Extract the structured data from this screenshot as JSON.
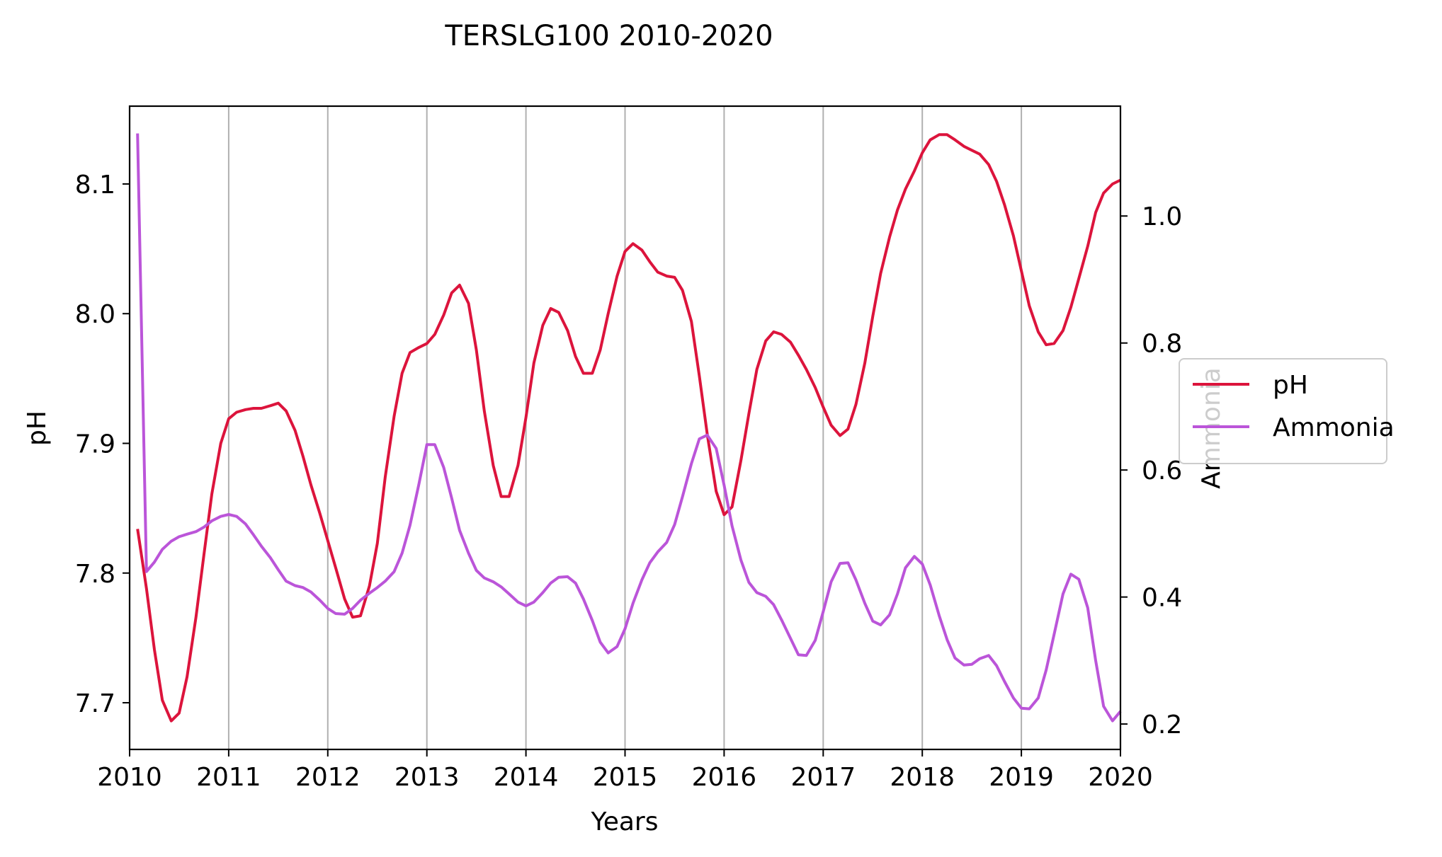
{
  "chart_data": {
    "type": "line",
    "title": "TERSLG100 2010-2020",
    "xlabel": "Years",
    "ylabel_left": "pH",
    "ylabel_right": "Ammonia",
    "xlim": [
      2010.0,
      2020.0
    ],
    "ylim_left": [
      7.664,
      8.16
    ],
    "ylim_right": [
      0.16,
      1.173
    ],
    "x_ticks": [
      {
        "value": 2010,
        "label": "2010"
      },
      {
        "value": 2011,
        "label": "2011"
      },
      {
        "value": 2012,
        "label": "2012"
      },
      {
        "value": 2013,
        "label": "2013"
      },
      {
        "value": 2014,
        "label": "2014"
      },
      {
        "value": 2015,
        "label": "2015"
      },
      {
        "value": 2016,
        "label": "2016"
      },
      {
        "value": 2017,
        "label": "2017"
      },
      {
        "value": 2018,
        "label": "2018"
      },
      {
        "value": 2019,
        "label": "2019"
      },
      {
        "value": 2020,
        "label": "2020"
      }
    ],
    "y_ticks_left": [
      {
        "value": 7.7,
        "label": "7.7"
      },
      {
        "value": 7.8,
        "label": "7.8"
      },
      {
        "value": 7.9,
        "label": "7.9"
      },
      {
        "value": 8.0,
        "label": "8.0"
      },
      {
        "value": 8.1,
        "label": "8.1"
      }
    ],
    "y_ticks_right": [
      {
        "value": 0.2,
        "label": "0.2"
      },
      {
        "value": 0.4,
        "label": "0.4"
      },
      {
        "value": 0.6,
        "label": "0.6"
      },
      {
        "value": 0.8,
        "label": "0.8"
      },
      {
        "value": 1.0,
        "label": "1.0"
      }
    ],
    "grid": "vertical",
    "legend_position": "right",
    "series": [
      {
        "name": "pH",
        "axis": "left",
        "color": "#dc143c",
        "x": [
          2010.08,
          2010.17,
          2010.25,
          2010.33,
          2010.42,
          2010.5,
          2010.58,
          2010.67,
          2010.75,
          2010.83,
          2010.92,
          2011.0,
          2011.08,
          2011.17,
          2011.25,
          2011.33,
          2011.42,
          2011.5,
          2011.58,
          2011.67,
          2011.75,
          2011.83,
          2011.92,
          2012.0,
          2012.08,
          2012.17,
          2012.25,
          2012.33,
          2012.42,
          2012.5,
          2012.58,
          2012.67,
          2012.75,
          2012.83,
          2012.92,
          2013.0,
          2013.08,
          2013.17,
          2013.25,
          2013.33,
          2013.42,
          2013.5,
          2013.58,
          2013.67,
          2013.75,
          2013.83,
          2013.92,
          2014.0,
          2014.08,
          2014.17,
          2014.25,
          2014.33,
          2014.42,
          2014.5,
          2014.58,
          2014.67,
          2014.75,
          2014.83,
          2014.92,
          2015.0,
          2015.08,
          2015.17,
          2015.25,
          2015.33,
          2015.42,
          2015.5,
          2015.58,
          2015.67,
          2015.75,
          2015.83,
          2015.92,
          2016.0,
          2016.08,
          2016.17,
          2016.25,
          2016.33,
          2016.42,
          2016.5,
          2016.58,
          2016.67,
          2016.75,
          2016.83,
          2016.92,
          2017.0,
          2017.08,
          2017.17,
          2017.25,
          2017.33,
          2017.42,
          2017.5,
          2017.58,
          2017.67,
          2017.75,
          2017.83,
          2017.92,
          2018.0,
          2018.08,
          2018.17,
          2018.25,
          2018.33,
          2018.42,
          2018.5,
          2018.58,
          2018.67,
          2018.75,
          2018.83,
          2018.92,
          2019.0,
          2019.08,
          2019.17,
          2019.25,
          2019.33,
          2019.42,
          2019.5,
          2019.58,
          2019.67,
          2019.75,
          2019.83,
          2019.92,
          2020.0
        ],
        "values": [
          7.834,
          7.788,
          7.741,
          7.702,
          7.686,
          7.692,
          7.72,
          7.766,
          7.814,
          7.861,
          7.9,
          7.919,
          7.924,
          7.926,
          7.927,
          7.927,
          7.929,
          7.931,
          7.925,
          7.91,
          7.89,
          7.868,
          7.846,
          7.825,
          7.804,
          7.78,
          7.766,
          7.767,
          7.79,
          7.823,
          7.874,
          7.921,
          7.954,
          7.97,
          7.974,
          7.977,
          7.984,
          7.999,
          8.016,
          8.022,
          8.008,
          7.972,
          7.925,
          7.883,
          7.859,
          7.859,
          7.883,
          7.92,
          7.962,
          7.991,
          8.004,
          8.001,
          7.987,
          7.967,
          7.954,
          7.954,
          7.972,
          8.0,
          8.029,
          8.048,
          8.054,
          8.049,
          8.04,
          8.032,
          8.029,
          8.028,
          8.018,
          7.994,
          7.952,
          7.907,
          7.863,
          7.845,
          7.851,
          7.887,
          7.923,
          7.957,
          7.979,
          7.986,
          7.984,
          7.978,
          7.968,
          7.957,
          7.943,
          7.928,
          7.914,
          7.906,
          7.911,
          7.93,
          7.962,
          7.998,
          8.031,
          8.059,
          8.08,
          8.096,
          8.11,
          8.124,
          8.134,
          8.138,
          8.138,
          8.134,
          8.129,
          8.126,
          8.123,
          8.115,
          8.102,
          8.084,
          8.06,
          8.033,
          8.006,
          7.986,
          7.976,
          7.977,
          7.987,
          8.005,
          8.027,
          8.052,
          8.078,
          8.093,
          8.1,
          8.103
        ]
      },
      {
        "name": "Ammonia",
        "axis": "right",
        "color": "#bb55d9",
        "x": [
          2010.08,
          2010.17,
          2010.25,
          2010.33,
          2010.42,
          2010.5,
          2010.58,
          2010.67,
          2010.75,
          2010.83,
          2010.92,
          2011.0,
          2011.08,
          2011.17,
          2011.25,
          2011.33,
          2011.42,
          2011.5,
          2011.58,
          2011.67,
          2011.75,
          2011.83,
          2011.92,
          2012.0,
          2012.08,
          2012.17,
          2012.25,
          2012.33,
          2012.42,
          2012.5,
          2012.58,
          2012.67,
          2012.75,
          2012.83,
          2012.92,
          2013.0,
          2013.08,
          2013.17,
          2013.25,
          2013.33,
          2013.42,
          2013.5,
          2013.58,
          2013.67,
          2013.75,
          2013.83,
          2013.92,
          2014.0,
          2014.08,
          2014.17,
          2014.25,
          2014.33,
          2014.42,
          2014.5,
          2014.58,
          2014.67,
          2014.75,
          2014.83,
          2014.92,
          2015.0,
          2015.08,
          2015.17,
          2015.25,
          2015.33,
          2015.42,
          2015.5,
          2015.58,
          2015.67,
          2015.75,
          2015.83,
          2015.92,
          2016.0,
          2016.08,
          2016.17,
          2016.25,
          2016.33,
          2016.42,
          2016.5,
          2016.58,
          2016.67,
          2016.75,
          2016.83,
          2016.92,
          2017.0,
          2017.08,
          2017.17,
          2017.25,
          2017.33,
          2017.42,
          2017.5,
          2017.58,
          2017.67,
          2017.75,
          2017.83,
          2017.92,
          2018.0,
          2018.08,
          2018.17,
          2018.25,
          2018.33,
          2018.42,
          2018.5,
          2018.58,
          2018.67,
          2018.75,
          2018.83,
          2018.92,
          2019.0,
          2019.08,
          2019.17,
          2019.25,
          2019.33,
          2019.42,
          2019.5,
          2019.58,
          2019.67,
          2019.75,
          2019.83,
          2019.92,
          2020.0
        ],
        "values": [
          1.13,
          0.44,
          0.455,
          0.475,
          0.488,
          0.495,
          0.499,
          0.503,
          0.51,
          0.52,
          0.527,
          0.53,
          0.527,
          0.515,
          0.498,
          0.48,
          0.462,
          0.443,
          0.425,
          0.418,
          0.415,
          0.408,
          0.395,
          0.382,
          0.374,
          0.373,
          0.382,
          0.395,
          0.406,
          0.415,
          0.425,
          0.44,
          0.469,
          0.513,
          0.578,
          0.64,
          0.64,
          0.604,
          0.556,
          0.505,
          0.469,
          0.442,
          0.43,
          0.424,
          0.416,
          0.405,
          0.392,
          0.386,
          0.392,
          0.407,
          0.422,
          0.431,
          0.432,
          0.422,
          0.397,
          0.363,
          0.329,
          0.312,
          0.322,
          0.35,
          0.39,
          0.427,
          0.454,
          0.471,
          0.486,
          0.514,
          0.558,
          0.61,
          0.649,
          0.655,
          0.634,
          0.576,
          0.512,
          0.458,
          0.423,
          0.407,
          0.401,
          0.388,
          0.364,
          0.335,
          0.309,
          0.308,
          0.332,
          0.377,
          0.424,
          0.453,
          0.454,
          0.427,
          0.39,
          0.362,
          0.356,
          0.372,
          0.405,
          0.446,
          0.464,
          0.452,
          0.419,
          0.371,
          0.333,
          0.304,
          0.293,
          0.294,
          0.303,
          0.308,
          0.292,
          0.267,
          0.241,
          0.225,
          0.224,
          0.241,
          0.285,
          0.341,
          0.405,
          0.436,
          0.428,
          0.383,
          0.3,
          0.228,
          0.205,
          0.22
        ]
      }
    ]
  }
}
